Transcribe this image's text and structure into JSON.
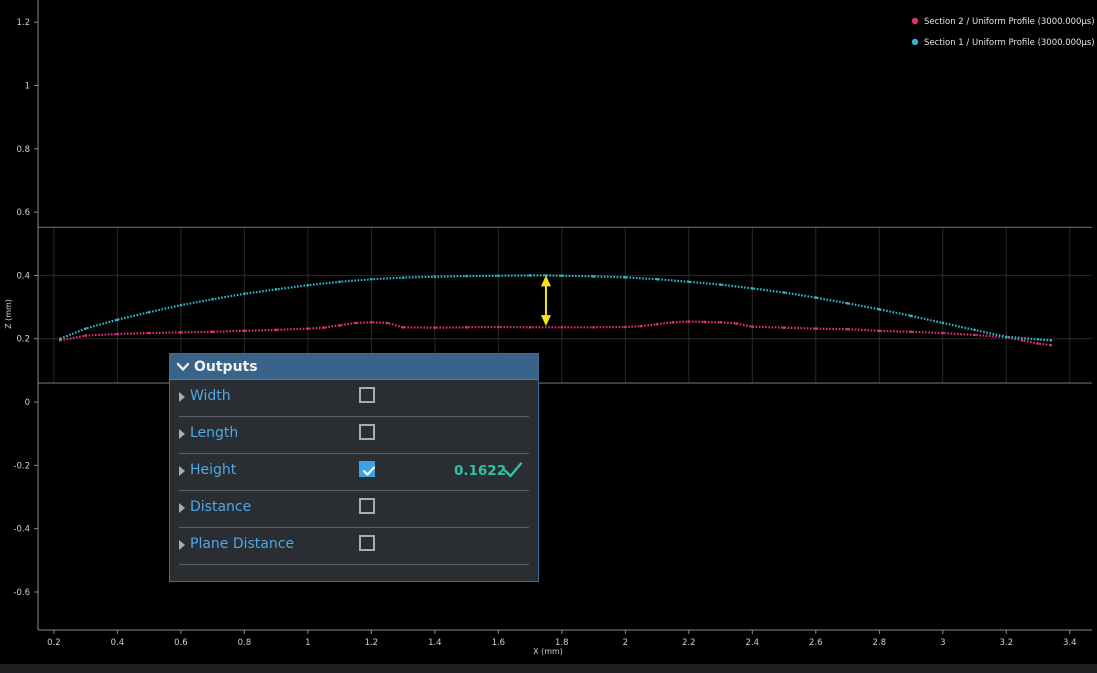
{
  "chart_data": {
    "type": "line",
    "xlabel": "X (mm)",
    "ylabel": "Z (mm)",
    "xlim": [
      0.15,
      3.47
    ],
    "ylim": [
      -0.72,
      1.27
    ],
    "x_ticks": [
      "0.2",
      "0.4",
      "0.6",
      "0.8",
      "1",
      "1.2",
      "1.4",
      "1.6",
      "1.8",
      "2",
      "2.2",
      "2.4",
      "2.6",
      "2.8",
      "3",
      "3.2",
      "3.4"
    ],
    "y_ticks": [
      "1.2",
      "1",
      "0.8",
      "0.6",
      "0.4",
      "0.2",
      "0",
      "-0.2",
      "-0.4",
      "-0.6"
    ],
    "zoom_band": {
      "z_top": 0.552,
      "z_bottom": 0.06
    },
    "legend_position": "top-right",
    "series": [
      {
        "name": "Section 2 / Uniform Profile (3000.000µs)",
        "color": "#e0307a",
        "x": [
          0.22,
          0.3,
          0.4,
          0.5,
          0.6,
          0.7,
          0.8,
          0.9,
          1.0,
          1.05,
          1.1,
          1.15,
          1.2,
          1.25,
          1.3,
          1.4,
          1.5,
          1.6,
          1.7,
          1.8,
          1.9,
          2.0,
          2.05,
          2.1,
          2.15,
          2.2,
          2.25,
          2.3,
          2.35,
          2.4,
          2.5,
          2.6,
          2.7,
          2.8,
          2.9,
          3.0,
          3.1,
          3.2,
          3.25,
          3.3,
          3.34
        ],
        "y": [
          0.195,
          0.21,
          0.215,
          0.218,
          0.22,
          0.222,
          0.225,
          0.228,
          0.232,
          0.235,
          0.242,
          0.25,
          0.252,
          0.25,
          0.236,
          0.235,
          0.236,
          0.237,
          0.236,
          0.236,
          0.236,
          0.237,
          0.24,
          0.246,
          0.252,
          0.254,
          0.253,
          0.252,
          0.248,
          0.238,
          0.235,
          0.232,
          0.23,
          0.225,
          0.222,
          0.218,
          0.212,
          0.205,
          0.195,
          0.185,
          0.18
        ]
      },
      {
        "name": "Section 1 / Uniform Profile (3000.000µs)",
        "color": "#2fb7c9",
        "x": [
          0.22,
          0.3,
          0.4,
          0.5,
          0.6,
          0.7,
          0.8,
          0.9,
          1.0,
          1.1,
          1.2,
          1.3,
          1.4,
          1.5,
          1.6,
          1.7,
          1.75,
          1.8,
          1.9,
          2.0,
          2.1,
          2.2,
          2.3,
          2.4,
          2.5,
          2.6,
          2.7,
          2.8,
          2.9,
          3.0,
          3.1,
          3.2,
          3.3,
          3.34
        ],
        "y": [
          0.2,
          0.232,
          0.26,
          0.284,
          0.306,
          0.325,
          0.342,
          0.356,
          0.369,
          0.38,
          0.388,
          0.393,
          0.396,
          0.398,
          0.399,
          0.4,
          0.4,
          0.399,
          0.397,
          0.394,
          0.388,
          0.38,
          0.371,
          0.359,
          0.346,
          0.33,
          0.312,
          0.293,
          0.272,
          0.25,
          0.228,
          0.206,
          0.198,
          0.195
        ]
      }
    ],
    "annotation": {
      "type": "height-arrow",
      "x": 1.75,
      "z_from": 0.4,
      "z_to": 0.24,
      "color": "#f5e21a"
    }
  },
  "outputs_panel": {
    "title": "Outputs",
    "rows": [
      {
        "label": "Width",
        "checked": false,
        "value": ""
      },
      {
        "label": "Length",
        "checked": false,
        "value": ""
      },
      {
        "label": "Height",
        "checked": true,
        "value": "0.1622"
      },
      {
        "label": "Distance",
        "checked": false,
        "value": ""
      },
      {
        "label": "Plane Distance",
        "checked": false,
        "value": ""
      }
    ]
  }
}
